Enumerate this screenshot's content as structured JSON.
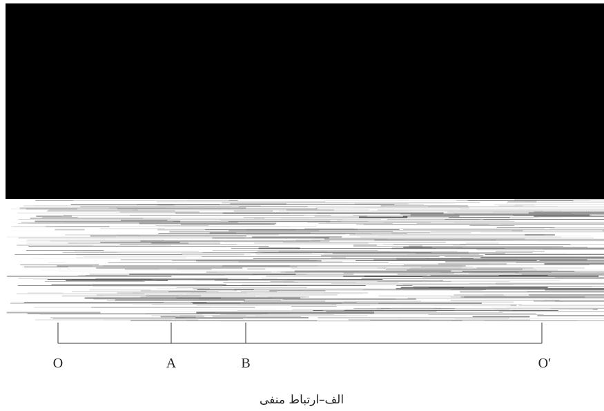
{
  "figure": {
    "labels": [
      "O",
      "A",
      "B",
      "O′"
    ],
    "caption": "الف–ارتباط منفی"
  }
}
